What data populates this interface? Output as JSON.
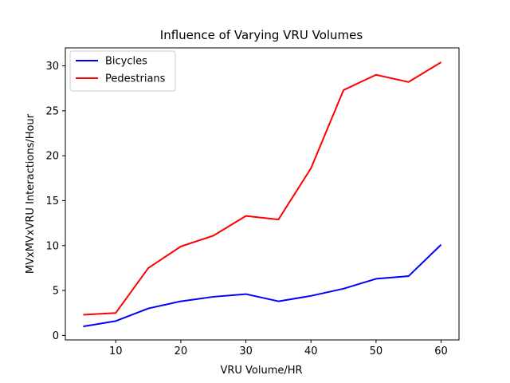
{
  "chart_data": {
    "type": "line",
    "title": "Influence of Varying VRU Volumes",
    "xlabel": "VRU Volume/HR",
    "ylabel": "MVxMVxVRU Interactions/Hour",
    "x": [
      5,
      10,
      15,
      20,
      25,
      30,
      35,
      40,
      45,
      50,
      55,
      60
    ],
    "series": [
      {
        "name": "Bicycles",
        "color": "#0000ff",
        "values": [
          1.0,
          1.6,
          3.0,
          3.8,
          4.3,
          4.6,
          3.8,
          4.4,
          5.2,
          6.3,
          6.6,
          10.1
        ]
      },
      {
        "name": "Pedestrians",
        "color": "#ff0000",
        "values": [
          2.3,
          2.5,
          7.5,
          9.9,
          11.1,
          13.3,
          12.9,
          18.6,
          27.3,
          29.0,
          28.2,
          30.4
        ]
      }
    ],
    "xlim": [
      2.25,
      62.75
    ],
    "ylim": [
      -0.5,
      32.0
    ],
    "xticks": [
      10,
      20,
      30,
      40,
      50,
      60
    ],
    "yticks": [
      0,
      5,
      10,
      15,
      20,
      25,
      30
    ],
    "grid": false,
    "legend_position": "top-left"
  }
}
